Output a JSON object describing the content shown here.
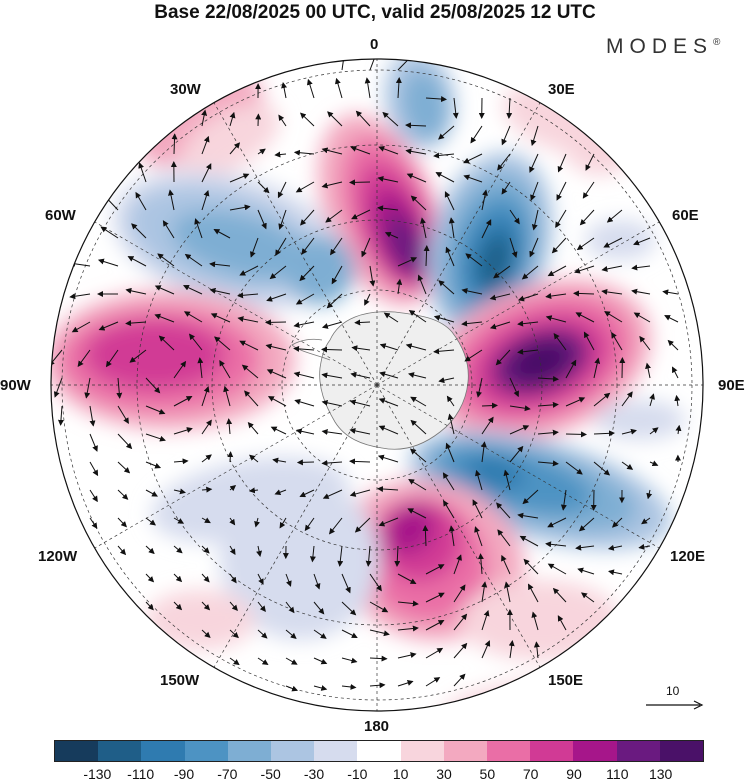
{
  "header": {
    "title": "Base 22/08/2025 00 UTC, valid 25/08/2025 12 UTC",
    "brand": "MODES",
    "brand_mark": "®"
  },
  "map": {
    "projection": "south-polar-stereographic",
    "longitude_labels": {
      "lon_0": "0",
      "lon_30e": "30E",
      "lon_60e": "60E",
      "lon_90e": "90E",
      "lon_120e": "120E",
      "lon_150e": "150E",
      "lon_180": "180",
      "lon_150w": "150W",
      "lon_120w": "120W",
      "lon_90w": "90W",
      "lon_60w": "60W",
      "lon_30w": "30W"
    },
    "reference_vector_label": "10",
    "colors": {
      "continent": "#efefef",
      "coast": "#777777",
      "grid": "#333333",
      "arrow": "#111111"
    }
  },
  "colorbar": {
    "tick_labels": [
      "-130",
      "-110",
      "-90",
      "-70",
      "-50",
      "-30",
      "-10",
      "10",
      "30",
      "50",
      "70",
      "90",
      "110",
      "130"
    ],
    "colors": [
      "#163b5c",
      "#1f5e88",
      "#2f7bb0",
      "#4d93c3",
      "#7eaed3",
      "#acc5e2",
      "#d6dcee",
      "#ffffff",
      "#f8d5dd",
      "#f3a9c0",
      "#ea6ea6",
      "#d13a95",
      "#a6168a",
      "#6a1a80",
      "#4a1168"
    ]
  }
}
